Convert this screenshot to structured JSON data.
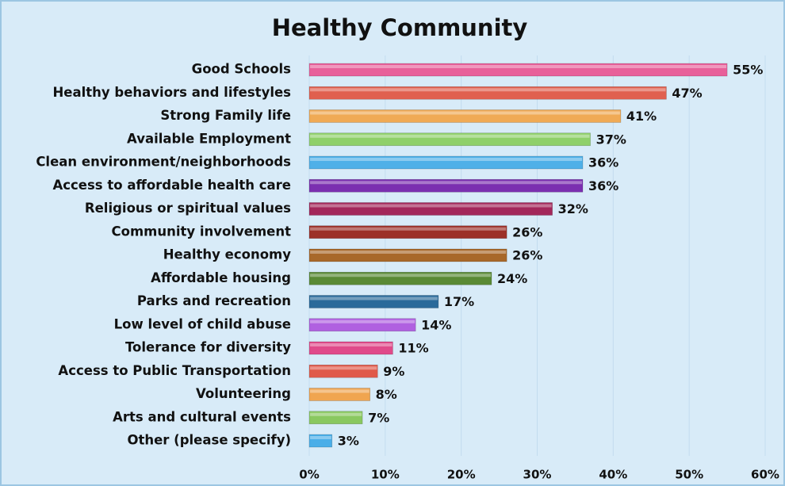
{
  "chart_data": {
    "type": "hbar",
    "title": "Healthy Community",
    "categories": [
      "Good Schools",
      "Healthy behaviors and lifestyles",
      "Strong Family life",
      "Available Employment",
      "Clean environment/neighborhoods",
      "Access to affordable health care",
      "Religious or spiritual values",
      "Community involvement",
      "Healthy economy",
      "Affordable housing",
      "Parks and recreation",
      "Low level of child abuse",
      "Tolerance for diversity",
      "Access to Public Transportation",
      "Volunteering",
      "Arts and cultural events",
      "Other (please specify)"
    ],
    "values": [
      55,
      47,
      41,
      37,
      36,
      36,
      32,
      26,
      26,
      24,
      17,
      14,
      11,
      9,
      8,
      7,
      3
    ],
    "value_labels": [
      "55%",
      "47%",
      "41%",
      "37%",
      "36%",
      "36%",
      "32%",
      "26%",
      "26%",
      "24%",
      "17%",
      "14%",
      "11%",
      "9%",
      "8%",
      "7%",
      "3%"
    ],
    "colors": [
      "#e8609a",
      "#e0604f",
      "#f0aa55",
      "#8fd06a",
      "#4fb0e8",
      "#7b2fb0",
      "#a3275a",
      "#9c3028",
      "#a8682a",
      "#5a8a35",
      "#2a6a9a",
      "#b060e0",
      "#e04a8a",
      "#e05a4a",
      "#f0a550",
      "#8ac860",
      "#4aaee8"
    ],
    "xlim": [
      0,
      60
    ],
    "xticks": [
      {
        "value": 0,
        "label": "0%"
      },
      {
        "value": 10,
        "label": "10%"
      },
      {
        "value": 20,
        "label": "20%"
      },
      {
        "value": 30,
        "label": "30%"
      },
      {
        "value": 40,
        "label": "40%"
      },
      {
        "value": 50,
        "label": "50%"
      },
      {
        "value": 60,
        "label": "60%"
      }
    ],
    "grid": true
  }
}
